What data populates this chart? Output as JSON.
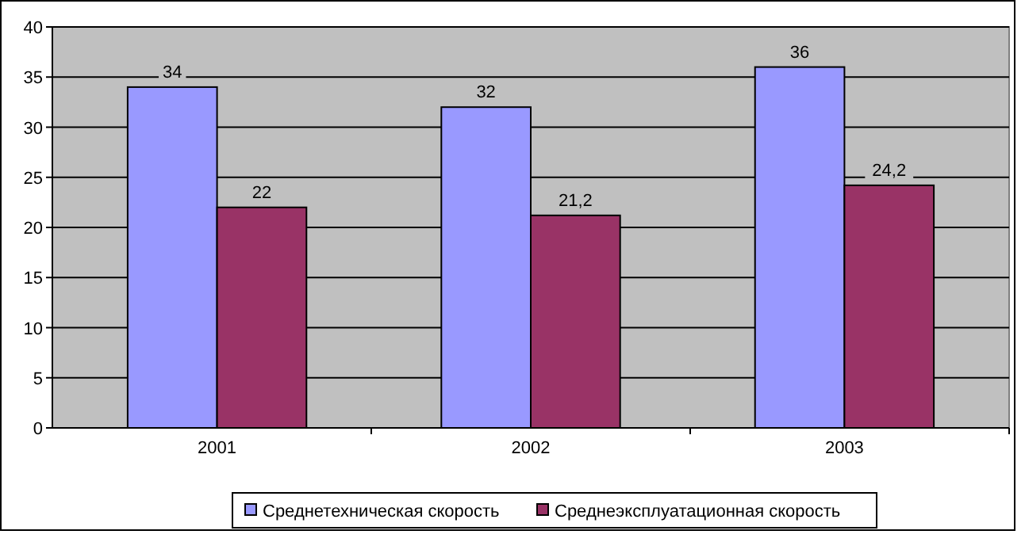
{
  "chart_data": {
    "type": "bar",
    "categories": [
      "2001",
      "2002",
      "2003"
    ],
    "series": [
      {
        "name": "Среднетехническая скорость",
        "color": "#9999ff",
        "values": [
          34,
          32,
          36
        ],
        "value_labels": [
          "34",
          "32",
          "36"
        ]
      },
      {
        "name": "Среднеэксплуатационная скорость",
        "color": "#993366",
        "values": [
          22,
          21.2,
          24.2
        ],
        "value_labels": [
          "22",
          "21,2",
          "24,2"
        ]
      }
    ],
    "ylim": [
      0,
      40
    ],
    "yticks": [
      0,
      5,
      10,
      15,
      20,
      25,
      30,
      35,
      40
    ],
    "grid": "y",
    "legend": "bottom"
  }
}
